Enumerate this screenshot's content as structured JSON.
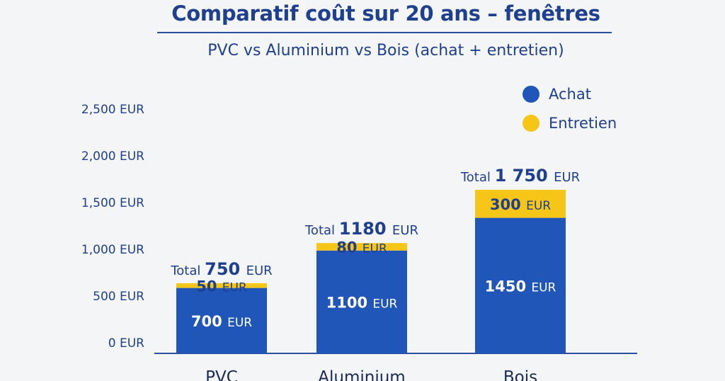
{
  "title": "Comparatif coût sur 20 ans – fenêtres",
  "subtitle": "PVC vs Aluminium vs Bois (achat + entretien)",
  "colors": {
    "achat": "#1f56b8",
    "entretien": "#f5c518",
    "text": "#1f3f8f"
  },
  "chart_data": {
    "type": "bar",
    "stacked": true,
    "categories": [
      "PVC",
      "Aluminium",
      "Bois"
    ],
    "series": [
      {
        "name": "Achat",
        "values": [
          700,
          1100,
          1450
        ]
      },
      {
        "name": "Entretien",
        "values": [
          50,
          80,
          300
        ]
      }
    ],
    "segment_labels": [
      [
        "700 EUR",
        "50 EUR"
      ],
      [
        "1100 EUR",
        "80 EUR"
      ],
      [
        "1450 EUR",
        "300 EUR"
      ]
    ],
    "total_labels": [
      {
        "prefix": "Total",
        "value": "750",
        "unit": "EUR"
      },
      {
        "prefix": "Total",
        "value": "1180",
        "unit": "EUR"
      },
      {
        "prefix": "Total",
        "value": "1 750",
        "unit": "EUR"
      }
    ],
    "yticks": [
      0,
      500,
      1000,
      1500,
      2000,
      2500
    ],
    "ytick_labels": [
      "0 EUR",
      "500 EUR",
      "1,000 EUR",
      "1,500 EUR",
      "2,000 EUR",
      "2,500 EUR"
    ],
    "ylim": [
      0,
      2500
    ],
    "grid": false,
    "legend_position": "top-right"
  }
}
